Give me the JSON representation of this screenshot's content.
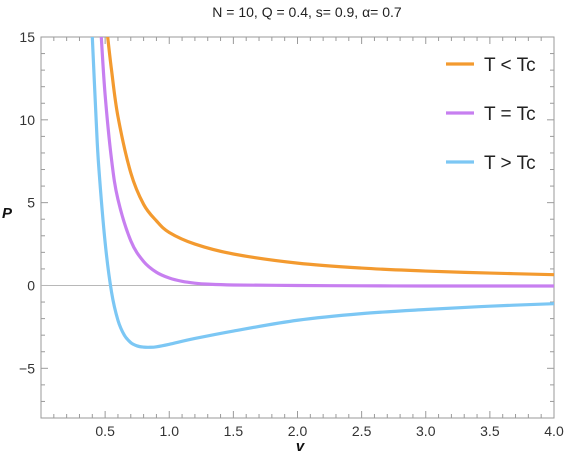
{
  "chart_data": {
    "type": "line",
    "title": "N = 10, Q = 0.4, s= 0.9, α= 0.7",
    "xlabel": "v",
    "ylabel": "P",
    "xlim": [
      0,
      4.0
    ],
    "ylim": [
      -8,
      15
    ],
    "x_ticks": [
      "0.5",
      "1.0",
      "1.5",
      "2.0",
      "2.5",
      "3.0",
      "3.5",
      "4.0"
    ],
    "y_ticks": [
      "−5",
      "0",
      "5",
      "10",
      "15"
    ],
    "grid": false,
    "legend_position": "top-right",
    "colors": {
      "orange": "#f39a2f",
      "purple": "#c77ff0",
      "blue": "#7cc7f4",
      "axis": "#9a9a9a"
    },
    "series": [
      {
        "name": "T < Tc",
        "color": "#f39a2f",
        "x": [
          0.52,
          0.55,
          0.6,
          0.7,
          0.8,
          0.9,
          1.0,
          1.2,
          1.5,
          2.0,
          2.5,
          3.0,
          3.5,
          4.0
        ],
        "y": [
          15,
          13.0,
          10.2,
          6.8,
          4.9,
          3.9,
          3.2,
          2.5,
          1.9,
          1.35,
          1.05,
          0.87,
          0.75,
          0.65
        ]
      },
      {
        "name": "T = Tc",
        "color": "#c77ff0",
        "x": [
          0.47,
          0.5,
          0.55,
          0.6,
          0.7,
          0.8,
          0.9,
          1.0,
          1.1,
          1.2,
          1.3,
          1.5,
          2.0,
          2.5,
          3.0,
          3.5,
          4.0
        ],
        "y": [
          15,
          11.5,
          7.6,
          5.2,
          2.7,
          1.45,
          0.8,
          0.45,
          0.25,
          0.14,
          0.08,
          0.03,
          0.0,
          -0.02,
          -0.03,
          -0.03,
          -0.03
        ]
      },
      {
        "name": "T > Tc",
        "color": "#7cc7f4",
        "x": [
          0.4,
          0.43,
          0.45,
          0.5,
          0.55,
          0.6,
          0.65,
          0.7,
          0.75,
          0.8,
          0.85,
          0.9,
          1.0,
          1.2,
          1.5,
          2.0,
          2.5,
          3.0,
          3.5,
          4.0
        ],
        "y": [
          15,
          10.0,
          7.2,
          2.6,
          -0.4,
          -2.1,
          -3.0,
          -3.45,
          -3.65,
          -3.72,
          -3.73,
          -3.7,
          -3.55,
          -3.2,
          -2.75,
          -2.1,
          -1.7,
          -1.45,
          -1.25,
          -1.1
        ]
      }
    ]
  }
}
